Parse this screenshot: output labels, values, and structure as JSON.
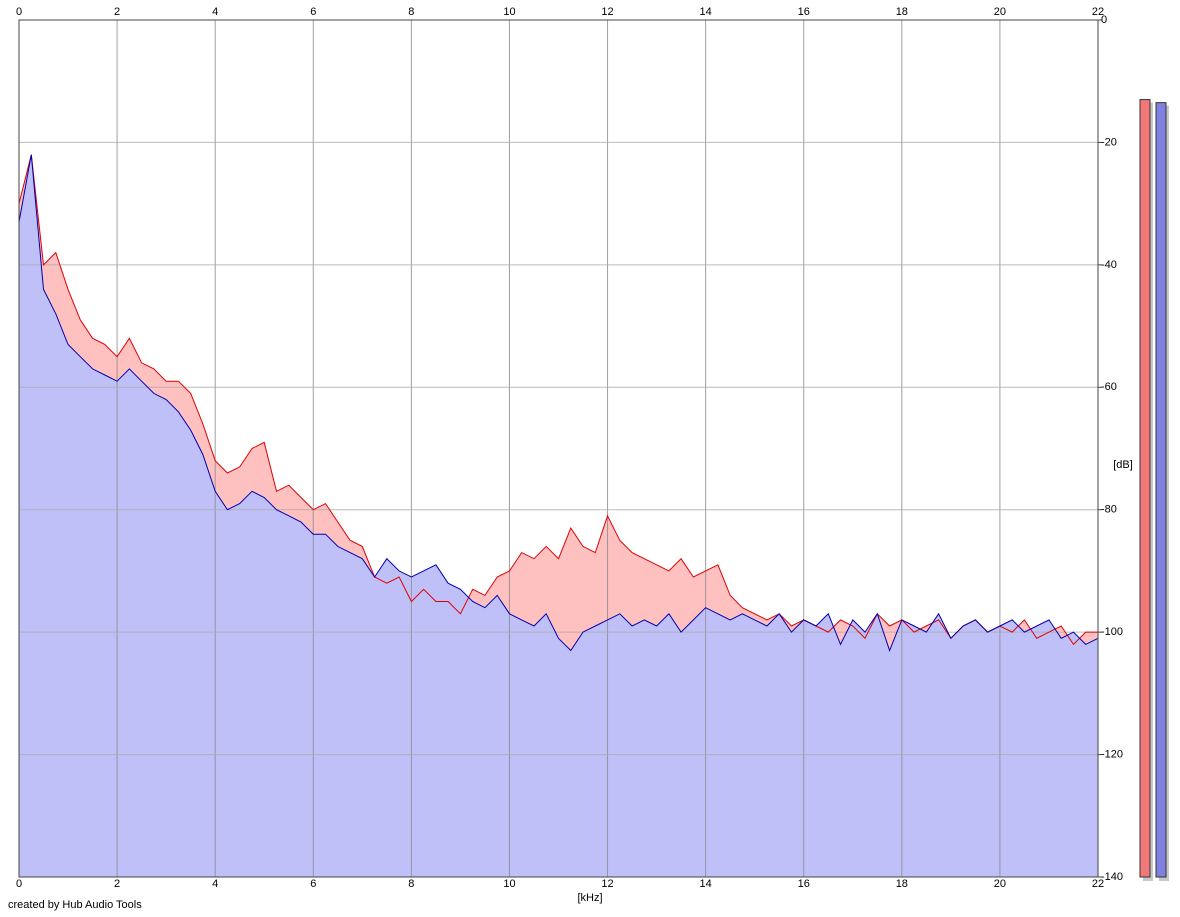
{
  "chart_data": {
    "type": "area-line",
    "x_label": "[kHz]",
    "y_label": "[dB]",
    "footer": "created by Hub Audio Tools",
    "xlim": [
      0,
      22
    ],
    "xticks": [
      0,
      2,
      4,
      6,
      8,
      10,
      12,
      14,
      16,
      18,
      20,
      22
    ],
    "ylim": [
      -140,
      0
    ],
    "yticks": [
      0,
      -20,
      -40,
      -60,
      -80,
      -100,
      -120,
      -140
    ],
    "grid": true,
    "x": [
      0,
      0.25,
      0.5,
      0.75,
      1,
      1.25,
      1.5,
      1.75,
      2,
      2.25,
      2.5,
      2.75,
      3,
      3.25,
      3.5,
      3.75,
      4,
      4.25,
      4.5,
      4.75,
      5,
      5.25,
      5.5,
      5.75,
      6,
      6.25,
      6.5,
      6.75,
      7,
      7.25,
      7.5,
      7.75,
      8,
      8.25,
      8.5,
      8.75,
      9,
      9.25,
      9.5,
      9.75,
      10,
      10.25,
      10.5,
      10.75,
      11,
      11.25,
      11.5,
      11.75,
      12,
      12.25,
      12.5,
      12.75,
      13,
      13.25,
      13.5,
      13.75,
      14,
      14.25,
      14.5,
      14.75,
      15,
      15.25,
      15.5,
      15.75,
      16,
      16.25,
      16.5,
      16.75,
      17,
      17.25,
      17.5,
      17.75,
      18,
      18.25,
      18.5,
      18.75,
      19,
      19.25,
      19.5,
      19.75,
      20,
      20.25,
      20.5,
      20.75,
      21,
      21.25,
      21.5,
      21.75,
      22
    ],
    "series": [
      {
        "color": "#e00000",
        "fill": "#ffc0c0",
        "values": [
          -30,
          -22,
          -40,
          -38,
          -44,
          -49,
          -52,
          -53,
          -55,
          -52,
          -56,
          -57,
          -59,
          -59,
          -61,
          -66,
          -72,
          -74,
          -73,
          -70,
          -69,
          -77,
          -76,
          -78,
          -80,
          -79,
          -82,
          -85,
          -86,
          -91,
          -92,
          -91,
          -95,
          -93,
          -95,
          -95,
          -97,
          -93,
          -94,
          -91,
          -90,
          -87,
          -88,
          -86,
          -88,
          -83,
          -86,
          -87,
          -81,
          -85,
          -87,
          -88,
          -89,
          -90,
          -88,
          -91,
          -90,
          -89,
          -94,
          -96,
          -97,
          -98,
          -97,
          -99,
          -98,
          -99,
          -100,
          -98,
          -99,
          -101,
          -97,
          -99,
          -98,
          -100,
          -99,
          -98,
          -101,
          -99,
          -98,
          -100,
          -99,
          -100,
          -98,
          -101,
          -100,
          -99,
          -102,
          -100,
          -100
        ]
      },
      {
        "color": "#0000b0",
        "fill": "#c0c0f8",
        "values": [
          -33,
          -22,
          -44,
          -48,
          -53,
          -55,
          -57,
          -58,
          -59,
          -57,
          -59,
          -61,
          -62,
          -64,
          -67,
          -71,
          -77,
          -80,
          -79,
          -77,
          -78,
          -80,
          -81,
          -82,
          -84,
          -84,
          -86,
          -87,
          -88,
          -91,
          -88,
          -90,
          -91,
          -90,
          -89,
          -92,
          -93,
          -95,
          -96,
          -94,
          -97,
          -98,
          -99,
          -97,
          -101,
          -103,
          -100,
          -99,
          -98,
          -97,
          -99,
          -98,
          -99,
          -97,
          -100,
          -98,
          -96,
          -97,
          -98,
          -97,
          -98,
          -99,
          -97,
          -100,
          -98,
          -99,
          -97,
          -102,
          -98,
          -100,
          -97,
          -103,
          -98,
          -99,
          -100,
          -97,
          -101,
          -99,
          -98,
          -100,
          -99,
          -98,
          -100,
          -99,
          -98,
          -101,
          -100,
          -102,
          -101
        ]
      }
    ],
    "meters": {
      "values": [
        -13,
        -13.5
      ],
      "colors": [
        "#f07878",
        "#8080e0"
      ]
    }
  }
}
